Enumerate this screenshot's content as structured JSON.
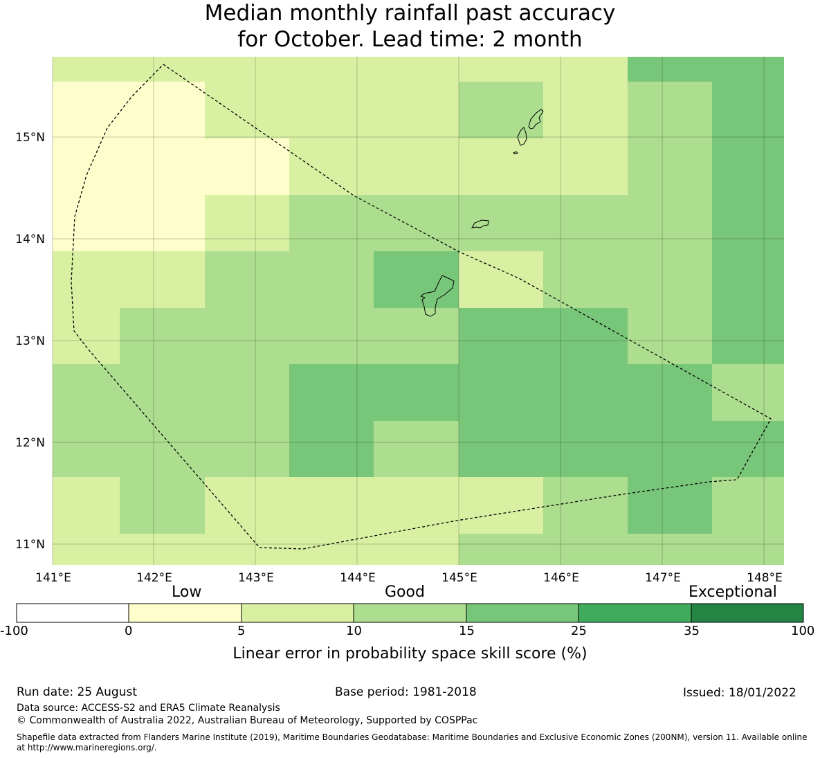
{
  "title_line1": "Median monthly rainfall past accuracy",
  "title_line2": "for October. Lead time: 2 month",
  "map": {
    "lon_labels": [
      "141°E",
      "142°E",
      "143°E",
      "144°E",
      "145°E",
      "146°E",
      "147°E",
      "148°E"
    ],
    "lat_labels": [
      "15°N",
      "14°N",
      "13°N",
      "12°N",
      "11°N"
    ],
    "colors": {
      "c0": "#ffffff",
      "c1": "#fefecc",
      "c2": "#d9f0a3",
      "c3": "#addd8e",
      "c4": "#78c679",
      "c5": "#41ab5d",
      "c6": "#238443"
    }
  },
  "colorbar": {
    "category_low": "Low",
    "category_good": "Good",
    "category_exceptional": "Exceptional",
    "ticks": [
      "-100",
      "0",
      "5",
      "10",
      "15",
      "25",
      "35",
      "100"
    ],
    "label": "Linear error in probability space skill score (%)"
  },
  "footer": {
    "run_date": "Run date: 25 August",
    "base_period": "Base period: 1981-2018",
    "issued": "Issued: 18/01/2022",
    "data_source": "Data source: ACCESS-S2 and ERA5 Climate Reanalysis",
    "copyright": "© Commonwealth of Australia 2022, Australian Bureau of Meteorology, Supported by COSPPac",
    "shapefile": "Shapefile data extracted from Flanders Marine Institute (2019), Maritime Boundaries Geodatabase: Maritime Boundaries and Exclusive Economic Zones (200NM), version 11. Available online at http://www.marineregions.org/."
  }
}
